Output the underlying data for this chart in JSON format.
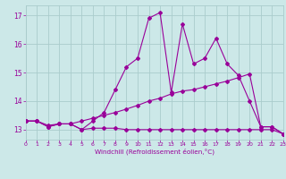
{
  "bg_color": "#cce8e8",
  "grid_color": "#aacccc",
  "line_color": "#990099",
  "xlabel": "Windchill (Refroidissement éolien,°C)",
  "xlim": [
    0,
    23
  ],
  "ylim": [
    12.65,
    17.35
  ],
  "yticks": [
    13,
    14,
    15,
    16,
    17
  ],
  "xticks": [
    0,
    1,
    2,
    3,
    4,
    5,
    6,
    7,
    8,
    9,
    10,
    11,
    12,
    13,
    14,
    15,
    16,
    17,
    18,
    19,
    20,
    21,
    22,
    23
  ],
  "x_values": [
    0,
    1,
    2,
    3,
    4,
    5,
    6,
    7,
    8,
    9,
    10,
    11,
    12,
    13,
    14,
    15,
    16,
    17,
    18,
    19,
    20,
    21,
    22,
    23
  ],
  "series1": [
    13.3,
    13.3,
    13.1,
    13.2,
    13.2,
    13.0,
    13.3,
    13.6,
    14.4,
    15.2,
    15.5,
    16.9,
    17.1,
    14.3,
    16.7,
    15.3,
    15.5,
    16.2,
    15.3,
    14.9,
    14.0,
    13.1,
    13.1,
    12.85
  ],
  "series2": [
    13.3,
    13.3,
    13.15,
    13.2,
    13.2,
    13.3,
    13.4,
    13.5,
    13.6,
    13.72,
    13.85,
    14.0,
    14.1,
    14.25,
    14.35,
    14.4,
    14.5,
    14.6,
    14.7,
    14.82,
    14.95,
    13.1,
    13.1,
    12.85
  ],
  "series3": [
    13.3,
    13.3,
    13.1,
    13.2,
    13.2,
    13.0,
    13.05,
    13.05,
    13.05,
    13.0,
    13.0,
    13.0,
    13.0,
    13.0,
    13.0,
    13.0,
    13.0,
    13.0,
    13.0,
    13.0,
    13.0,
    13.0,
    13.0,
    12.85
  ]
}
